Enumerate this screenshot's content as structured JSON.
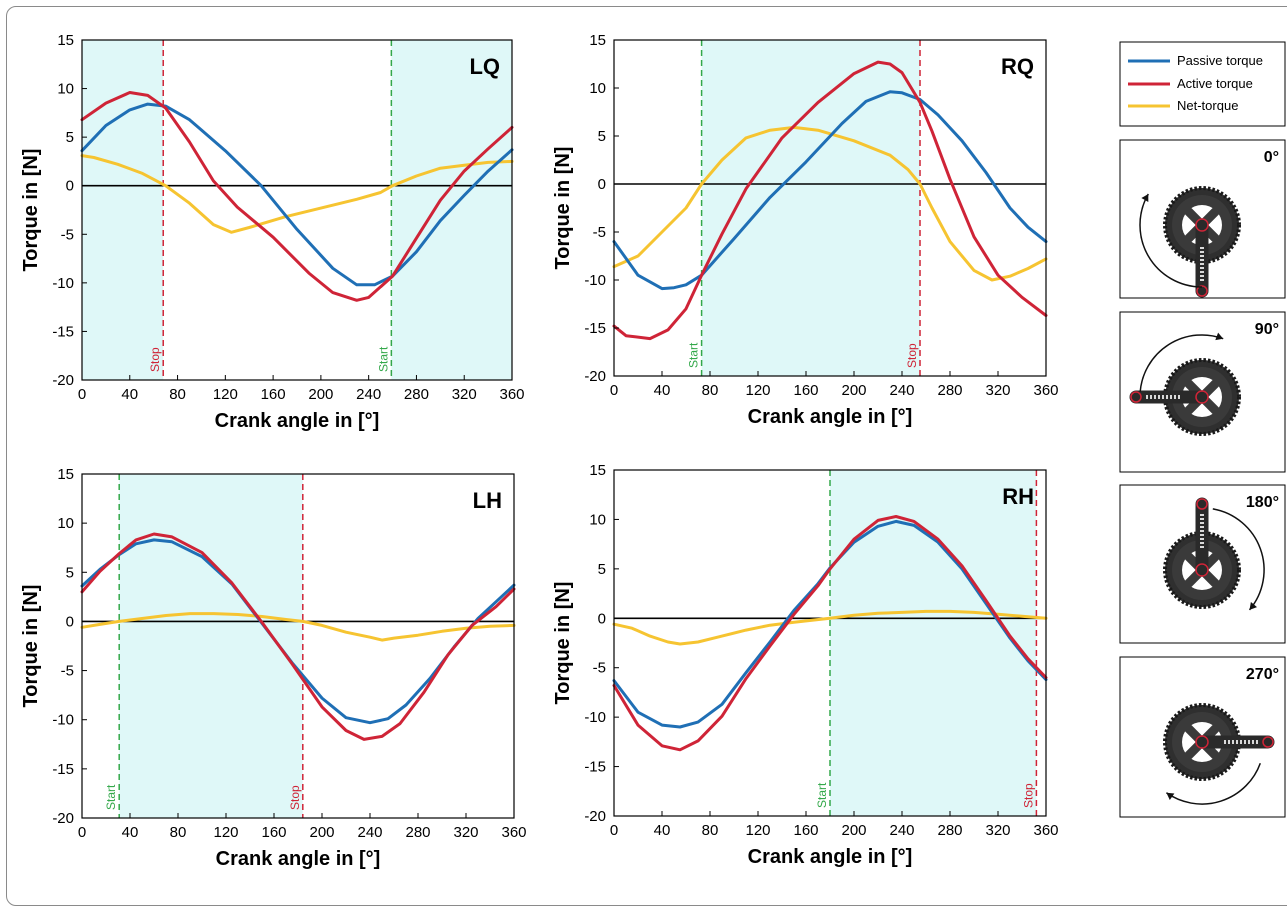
{
  "colors": {
    "passive": "#1f6fb5",
    "active": "#cf2437",
    "net": "#f6c431",
    "shade": "#dff8f8",
    "start_line": "#33a84a",
    "stop_line": "#cf2437"
  },
  "legend": {
    "entries": [
      "Passive torque",
      "Active torque",
      "Net-torque"
    ]
  },
  "crank_panels": [
    {
      "angle": "0°"
    },
    {
      "angle": "90°"
    },
    {
      "angle": "180°"
    },
    {
      "angle": "270°"
    }
  ],
  "chart_data": [
    {
      "type": "line",
      "panel_label": "LQ",
      "xlabel": "Crank angle in [°]",
      "ylabel": "Torque in [N]",
      "xlim": [
        0,
        360
      ],
      "ylim": [
        -20,
        15
      ],
      "xticks": [
        0,
        40,
        80,
        120,
        160,
        200,
        240,
        280,
        320,
        360
      ],
      "yticks": [
        15,
        10,
        5,
        0,
        -5,
        -10,
        -15,
        -20
      ],
      "shaded": [
        [
          0,
          68
        ],
        [
          259,
          360
        ]
      ],
      "markers": [
        {
          "x": 68,
          "label": "Stop",
          "kind": "stop"
        },
        {
          "x": 259,
          "label": "Start",
          "kind": "start"
        }
      ],
      "series": [
        {
          "name": "Passive torque",
          "color_key": "passive",
          "x": [
            0,
            20,
            40,
            55,
            70,
            90,
            120,
            150,
            180,
            210,
            230,
            245,
            260,
            280,
            300,
            320,
            340,
            360
          ],
          "y": [
            3.6,
            6.2,
            7.8,
            8.4,
            8.2,
            6.8,
            3.6,
            0,
            -4.5,
            -8.5,
            -10.2,
            -10.2,
            -9.3,
            -6.8,
            -3.6,
            -1,
            1.5,
            3.7
          ]
        },
        {
          "name": "Active torque",
          "color_key": "active",
          "x": [
            0,
            20,
            40,
            55,
            70,
            90,
            110,
            130,
            160,
            190,
            210,
            230,
            240,
            260,
            280,
            300,
            320,
            340,
            360
          ],
          "y": [
            6.8,
            8.5,
            9.6,
            9.3,
            8,
            4.5,
            0.5,
            -2.2,
            -5.3,
            -9,
            -11,
            -11.8,
            -11.5,
            -9.3,
            -5.4,
            -1.5,
            1.5,
            3.8,
            6
          ]
        },
        {
          "name": "Net-torque",
          "color_key": "net",
          "x": [
            0,
            10,
            30,
            50,
            70,
            90,
            110,
            125,
            140,
            170,
            200,
            230,
            250,
            260,
            280,
            300,
            320,
            340,
            360
          ],
          "y": [
            3.1,
            2.9,
            2.2,
            1.3,
            0,
            -1.8,
            -4,
            -4.8,
            -4.3,
            -3.2,
            -2.3,
            -1.4,
            -0.7,
            0,
            1,
            1.8,
            2.1,
            2.4,
            2.5
          ]
        }
      ]
    },
    {
      "type": "line",
      "panel_label": "RQ",
      "xlabel": "Crank angle in [°]",
      "ylabel": "Torque in [N]",
      "xlim": [
        0,
        360
      ],
      "ylim": [
        -20,
        15
      ],
      "xticks": [
        0,
        40,
        80,
        120,
        160,
        200,
        240,
        280,
        320,
        360
      ],
      "yticks": [
        15,
        10,
        5,
        0,
        -5,
        -10,
        -15,
        -20
      ],
      "shaded": [
        [
          73,
          255
        ]
      ],
      "markers": [
        {
          "x": 73,
          "label": "Start",
          "kind": "start"
        },
        {
          "x": 255,
          "label": "Stop",
          "kind": "stop"
        }
      ],
      "series": [
        {
          "name": "Passive torque",
          "color_key": "passive",
          "x": [
            0,
            20,
            40,
            50,
            60,
            73,
            100,
            130,
            160,
            190,
            210,
            230,
            240,
            255,
            270,
            290,
            310,
            330,
            345,
            360
          ],
          "y": [
            -6,
            -9.5,
            -10.9,
            -10.8,
            -10.5,
            -9.5,
            -5.7,
            -1.4,
            2.3,
            6.3,
            8.6,
            9.6,
            9.5,
            8.8,
            7.2,
            4.5,
            1.2,
            -2.5,
            -4.5,
            -6
          ]
        },
        {
          "name": "Active torque",
          "color_key": "active",
          "x": [
            0,
            10,
            30,
            45,
            60,
            73,
            90,
            110,
            140,
            170,
            200,
            220,
            230,
            240,
            255,
            265,
            280,
            300,
            320,
            340,
            360
          ],
          "y": [
            -14.8,
            -15.8,
            -16.1,
            -15.2,
            -13,
            -9.5,
            -5.2,
            -0.5,
            4.8,
            8.5,
            11.5,
            12.7,
            12.5,
            11.6,
            8.5,
            5.5,
            0.5,
            -5.5,
            -9.5,
            -11.8,
            -13.7
          ]
        },
        {
          "name": "Net-torque",
          "color_key": "net",
          "x": [
            0,
            20,
            40,
            60,
            73,
            90,
            110,
            130,
            150,
            170,
            200,
            230,
            245,
            255,
            265,
            280,
            300,
            315,
            330,
            345,
            360
          ],
          "y": [
            -8.6,
            -7.5,
            -5,
            -2.5,
            0,
            2.5,
            4.8,
            5.6,
            5.9,
            5.6,
            4.5,
            3,
            1.5,
            0,
            -2.5,
            -6,
            -9,
            -10,
            -9.6,
            -8.8,
            -7.8
          ]
        }
      ]
    },
    {
      "type": "line",
      "panel_label": "LH",
      "xlabel": "Crank angle in [°]",
      "ylabel": "Torque in [N]",
      "xlim": [
        0,
        360
      ],
      "ylim": [
        -20,
        15
      ],
      "xticks": [
        0,
        40,
        80,
        120,
        160,
        200,
        240,
        280,
        320,
        360
      ],
      "yticks": [
        15,
        10,
        5,
        0,
        -5,
        -10,
        -15,
        -20
      ],
      "shaded": [
        [
          31,
          184
        ]
      ],
      "markers": [
        {
          "x": 31,
          "label": "Start",
          "kind": "start"
        },
        {
          "x": 184,
          "label": "Stop",
          "kind": "stop"
        }
      ],
      "series": [
        {
          "name": "Passive torque",
          "color_key": "passive",
          "x": [
            0,
            15,
            31,
            45,
            60,
            75,
            100,
            125,
            150,
            175,
            200,
            220,
            240,
            255,
            270,
            290,
            310,
            330,
            345,
            360
          ],
          "y": [
            3.6,
            5.3,
            6.8,
            7.9,
            8.3,
            8.1,
            6.6,
            3.8,
            -0.2,
            -4.2,
            -7.8,
            -9.8,
            -10.3,
            -9.9,
            -8.5,
            -5.8,
            -2.6,
            0.3,
            2,
            3.7
          ]
        },
        {
          "name": "Active torque",
          "color_key": "active",
          "x": [
            0,
            15,
            31,
            45,
            60,
            75,
            100,
            125,
            150,
            175,
            200,
            220,
            235,
            250,
            265,
            285,
            305,
            325,
            345,
            360
          ],
          "y": [
            3,
            5.1,
            6.9,
            8.3,
            8.9,
            8.6,
            7,
            3.9,
            -0.1,
            -4.3,
            -8.7,
            -11.1,
            -12,
            -11.7,
            -10.4,
            -7.2,
            -3.4,
            -0.4,
            1.5,
            3.3
          ]
        },
        {
          "name": "Net-torque",
          "color_key": "net",
          "x": [
            0,
            15,
            31,
            50,
            70,
            90,
            110,
            130,
            150,
            170,
            184,
            200,
            220,
            240,
            250,
            260,
            280,
            300,
            320,
            340,
            360
          ],
          "y": [
            -0.6,
            -0.3,
            0,
            0.3,
            0.6,
            0.8,
            0.8,
            0.7,
            0.5,
            0.2,
            0,
            -0.4,
            -1.1,
            -1.6,
            -1.9,
            -1.7,
            -1.4,
            -1,
            -0.7,
            -0.5,
            -0.4
          ]
        }
      ]
    },
    {
      "type": "line",
      "panel_label": "RH",
      "xlabel": "Crank angle in [°]",
      "ylabel": "Torque in [N]",
      "xlim": [
        0,
        360
      ],
      "ylim": [
        -20,
        15
      ],
      "xticks": [
        0,
        40,
        80,
        120,
        160,
        200,
        240,
        280,
        320,
        360
      ],
      "yticks": [
        15,
        10,
        5,
        0,
        -5,
        -10,
        -15,
        -20
      ],
      "shaded": [
        [
          180,
          352
        ]
      ],
      "markers": [
        {
          "x": 180,
          "label": "Start",
          "kind": "start"
        },
        {
          "x": 352,
          "label": "Stop",
          "kind": "stop"
        }
      ],
      "series": [
        {
          "name": "Passive torque",
          "color_key": "passive",
          "x": [
            0,
            20,
            40,
            55,
            70,
            90,
            110,
            130,
            150,
            170,
            180,
            200,
            220,
            235,
            250,
            270,
            290,
            310,
            330,
            345,
            360
          ],
          "y": [
            -6.3,
            -9.5,
            -10.8,
            -11,
            -10.5,
            -8.7,
            -5.5,
            -2.4,
            0.8,
            3.5,
            5.1,
            7.7,
            9.3,
            9.8,
            9.4,
            7.7,
            5,
            1.5,
            -2,
            -4.3,
            -6.2
          ]
        },
        {
          "name": "Active torque",
          "color_key": "active",
          "x": [
            0,
            20,
            40,
            55,
            70,
            90,
            110,
            130,
            150,
            170,
            180,
            200,
            220,
            235,
            250,
            270,
            290,
            310,
            330,
            345,
            360
          ],
          "y": [
            -6.8,
            -10.8,
            -12.9,
            -13.3,
            -12.4,
            -9.9,
            -6.1,
            -2.8,
            0.4,
            3.3,
            5,
            8,
            9.9,
            10.3,
            9.8,
            8,
            5.3,
            1.8,
            -1.8,
            -4.1,
            -6
          ]
        },
        {
          "name": "Net-torque",
          "color_key": "net",
          "x": [
            0,
            15,
            30,
            45,
            55,
            70,
            90,
            110,
            130,
            150,
            165,
            180,
            200,
            220,
            240,
            260,
            280,
            300,
            320,
            340,
            360
          ],
          "y": [
            -0.6,
            -1,
            -1.8,
            -2.4,
            -2.6,
            -2.4,
            -1.8,
            -1.2,
            -0.7,
            -0.4,
            -0.2,
            0,
            0.3,
            0.5,
            0.6,
            0.7,
            0.7,
            0.6,
            0.4,
            0.2,
            0
          ]
        }
      ]
    }
  ]
}
